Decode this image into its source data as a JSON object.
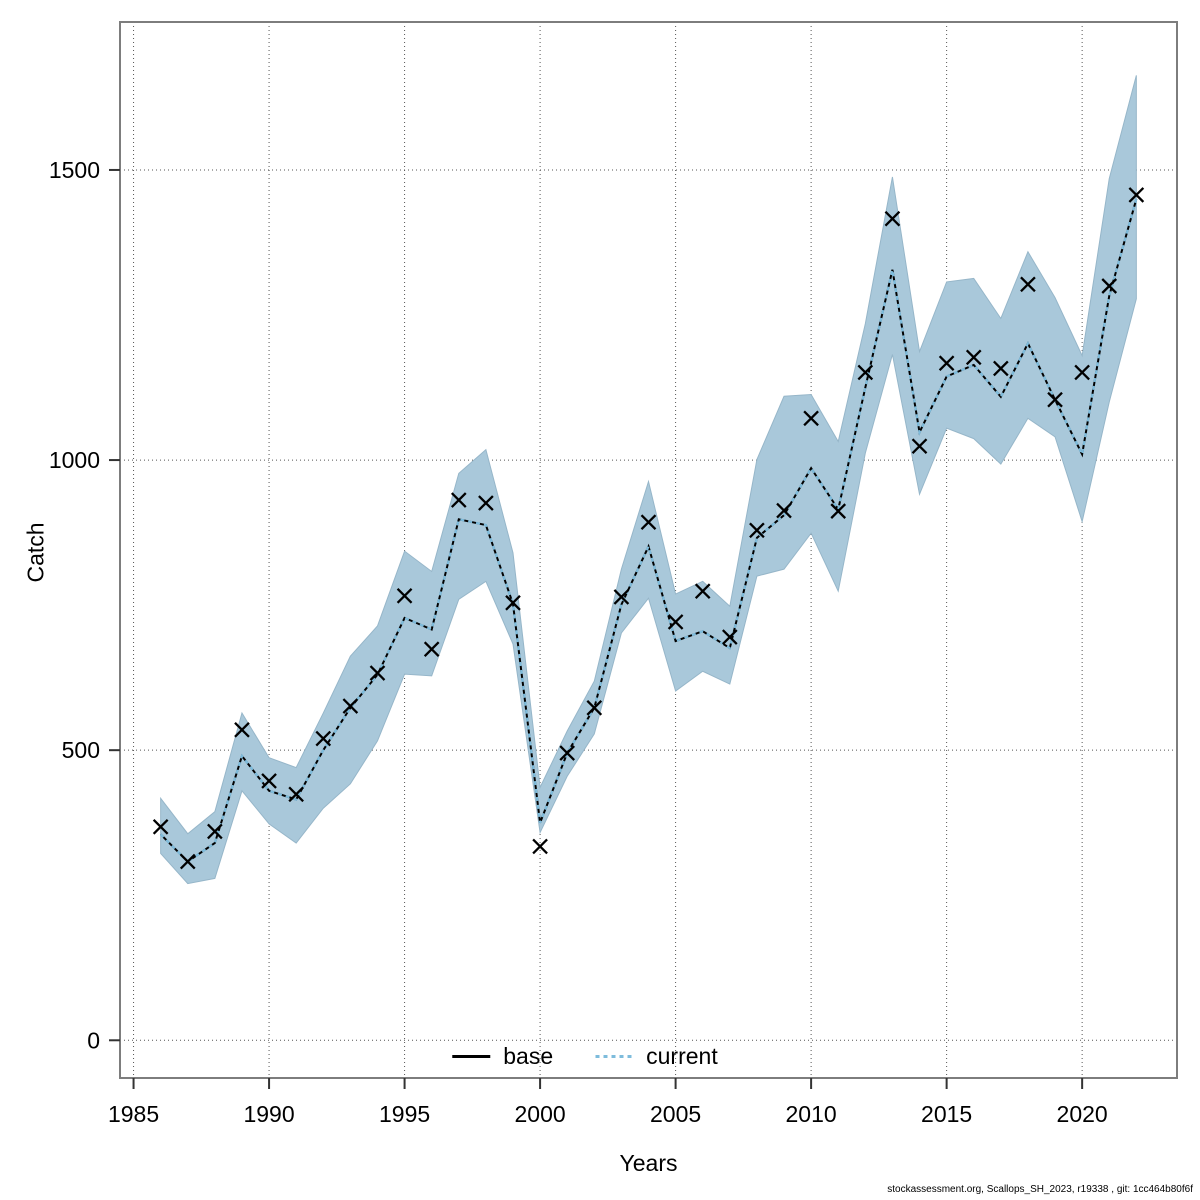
{
  "axes": {
    "x_label": "Years",
    "y_label": "Catch"
  },
  "legend": {
    "items": [
      {
        "label": "base",
        "line_style": "solid",
        "color": "#000000"
      },
      {
        "label": "current",
        "line_style": "dashed",
        "color": "#7EBCDC"
      }
    ]
  },
  "footer": {
    "text": "stockassessment.org, Scallops_SH_2023, r19338 , git: 1cc464b80f6f"
  },
  "colors": {
    "band_fill": "#A9C8DA",
    "band_edge": "#96B6C9",
    "base_line": "#000000",
    "current_line": "#7EBCDC",
    "marker": "#000000",
    "grid": "#555555",
    "frame": "#7D7D7D",
    "tick": "#333333",
    "text": "#000000",
    "background": "#FFFFFF"
  },
  "chart_data": {
    "type": "line",
    "title": "",
    "xlabel": "Years",
    "ylabel": "Catch",
    "x_ticks": [
      1985,
      1990,
      1995,
      2000,
      2005,
      2010,
      2015,
      2020
    ],
    "y_ticks": [
      0,
      500,
      1000,
      1500
    ],
    "xlim": [
      1984.5,
      2023.5
    ],
    "ylim": [
      -65,
      1755
    ],
    "grid": "dotted",
    "legend_position": "bottom-center-inside",
    "x": [
      1986,
      1987,
      1988,
      1989,
      1990,
      1991,
      1992,
      1993,
      1994,
      1995,
      1996,
      1997,
      1998,
      1999,
      2000,
      2001,
      2002,
      2003,
      2004,
      2005,
      2006,
      2007,
      2008,
      2009,
      2010,
      2011,
      2012,
      2013,
      2014,
      2015,
      2016,
      2017,
      2018,
      2019,
      2020,
      2021,
      2022
    ],
    "series": [
      {
        "name": "observed catch (crosses)",
        "style": "marker-x",
        "values": [
          368,
          308,
          360,
          535,
          447,
          424,
          520,
          576,
          633,
          766,
          674,
          931,
          926,
          754,
          334,
          495,
          573,
          764,
          893,
          721,
          774,
          695,
          879,
          913,
          1072,
          912,
          1151,
          1416,
          1024,
          1167,
          1177,
          1158,
          1303,
          1104,
          1151,
          1300,
          1457
        ]
      },
      {
        "name": "base",
        "style": "line-solid",
        "values": [
          355,
          308,
          340,
          490,
          430,
          415,
          500,
          573,
          630,
          728,
          708,
          898,
          888,
          752,
          375,
          495,
          573,
          751,
          851,
          688,
          705,
          676,
          866,
          905,
          986,
          915,
          1125,
          1328,
          1048,
          1144,
          1164,
          1109,
          1201,
          1104,
          1010,
          1283,
          1450
        ]
      },
      {
        "name": "current",
        "style": "line-dashed",
        "values": [
          355,
          308,
          340,
          490,
          430,
          415,
          500,
          573,
          630,
          728,
          708,
          898,
          888,
          752,
          375,
          495,
          573,
          751,
          851,
          688,
          705,
          676,
          866,
          905,
          986,
          915,
          1125,
          1328,
          1048,
          1144,
          1164,
          1109,
          1201,
          1104,
          1010,
          1283,
          1450
        ]
      }
    ],
    "band": {
      "name": "confidence interval",
      "lower": [
        322,
        270,
        279,
        430,
        373,
        340,
        400,
        442,
        516,
        631,
        628,
        760,
        791,
        683,
        358,
        455,
        528,
        702,
        762,
        602,
        636,
        614,
        800,
        812,
        874,
        774,
        1012,
        1182,
        941,
        1055,
        1037,
        993,
        1072,
        1040,
        894,
        1100,
        1278
      ],
      "upper": [
        417,
        356,
        394,
        564,
        487,
        470,
        564,
        662,
        714,
        843,
        808,
        977,
        1018,
        840,
        436,
        533,
        619,
        812,
        963,
        769,
        791,
        748,
        1001,
        1110,
        1113,
        1032,
        1235,
        1488,
        1187,
        1307,
        1313,
        1244,
        1359,
        1280,
        1180,
        1485,
        1663
      ]
    }
  }
}
